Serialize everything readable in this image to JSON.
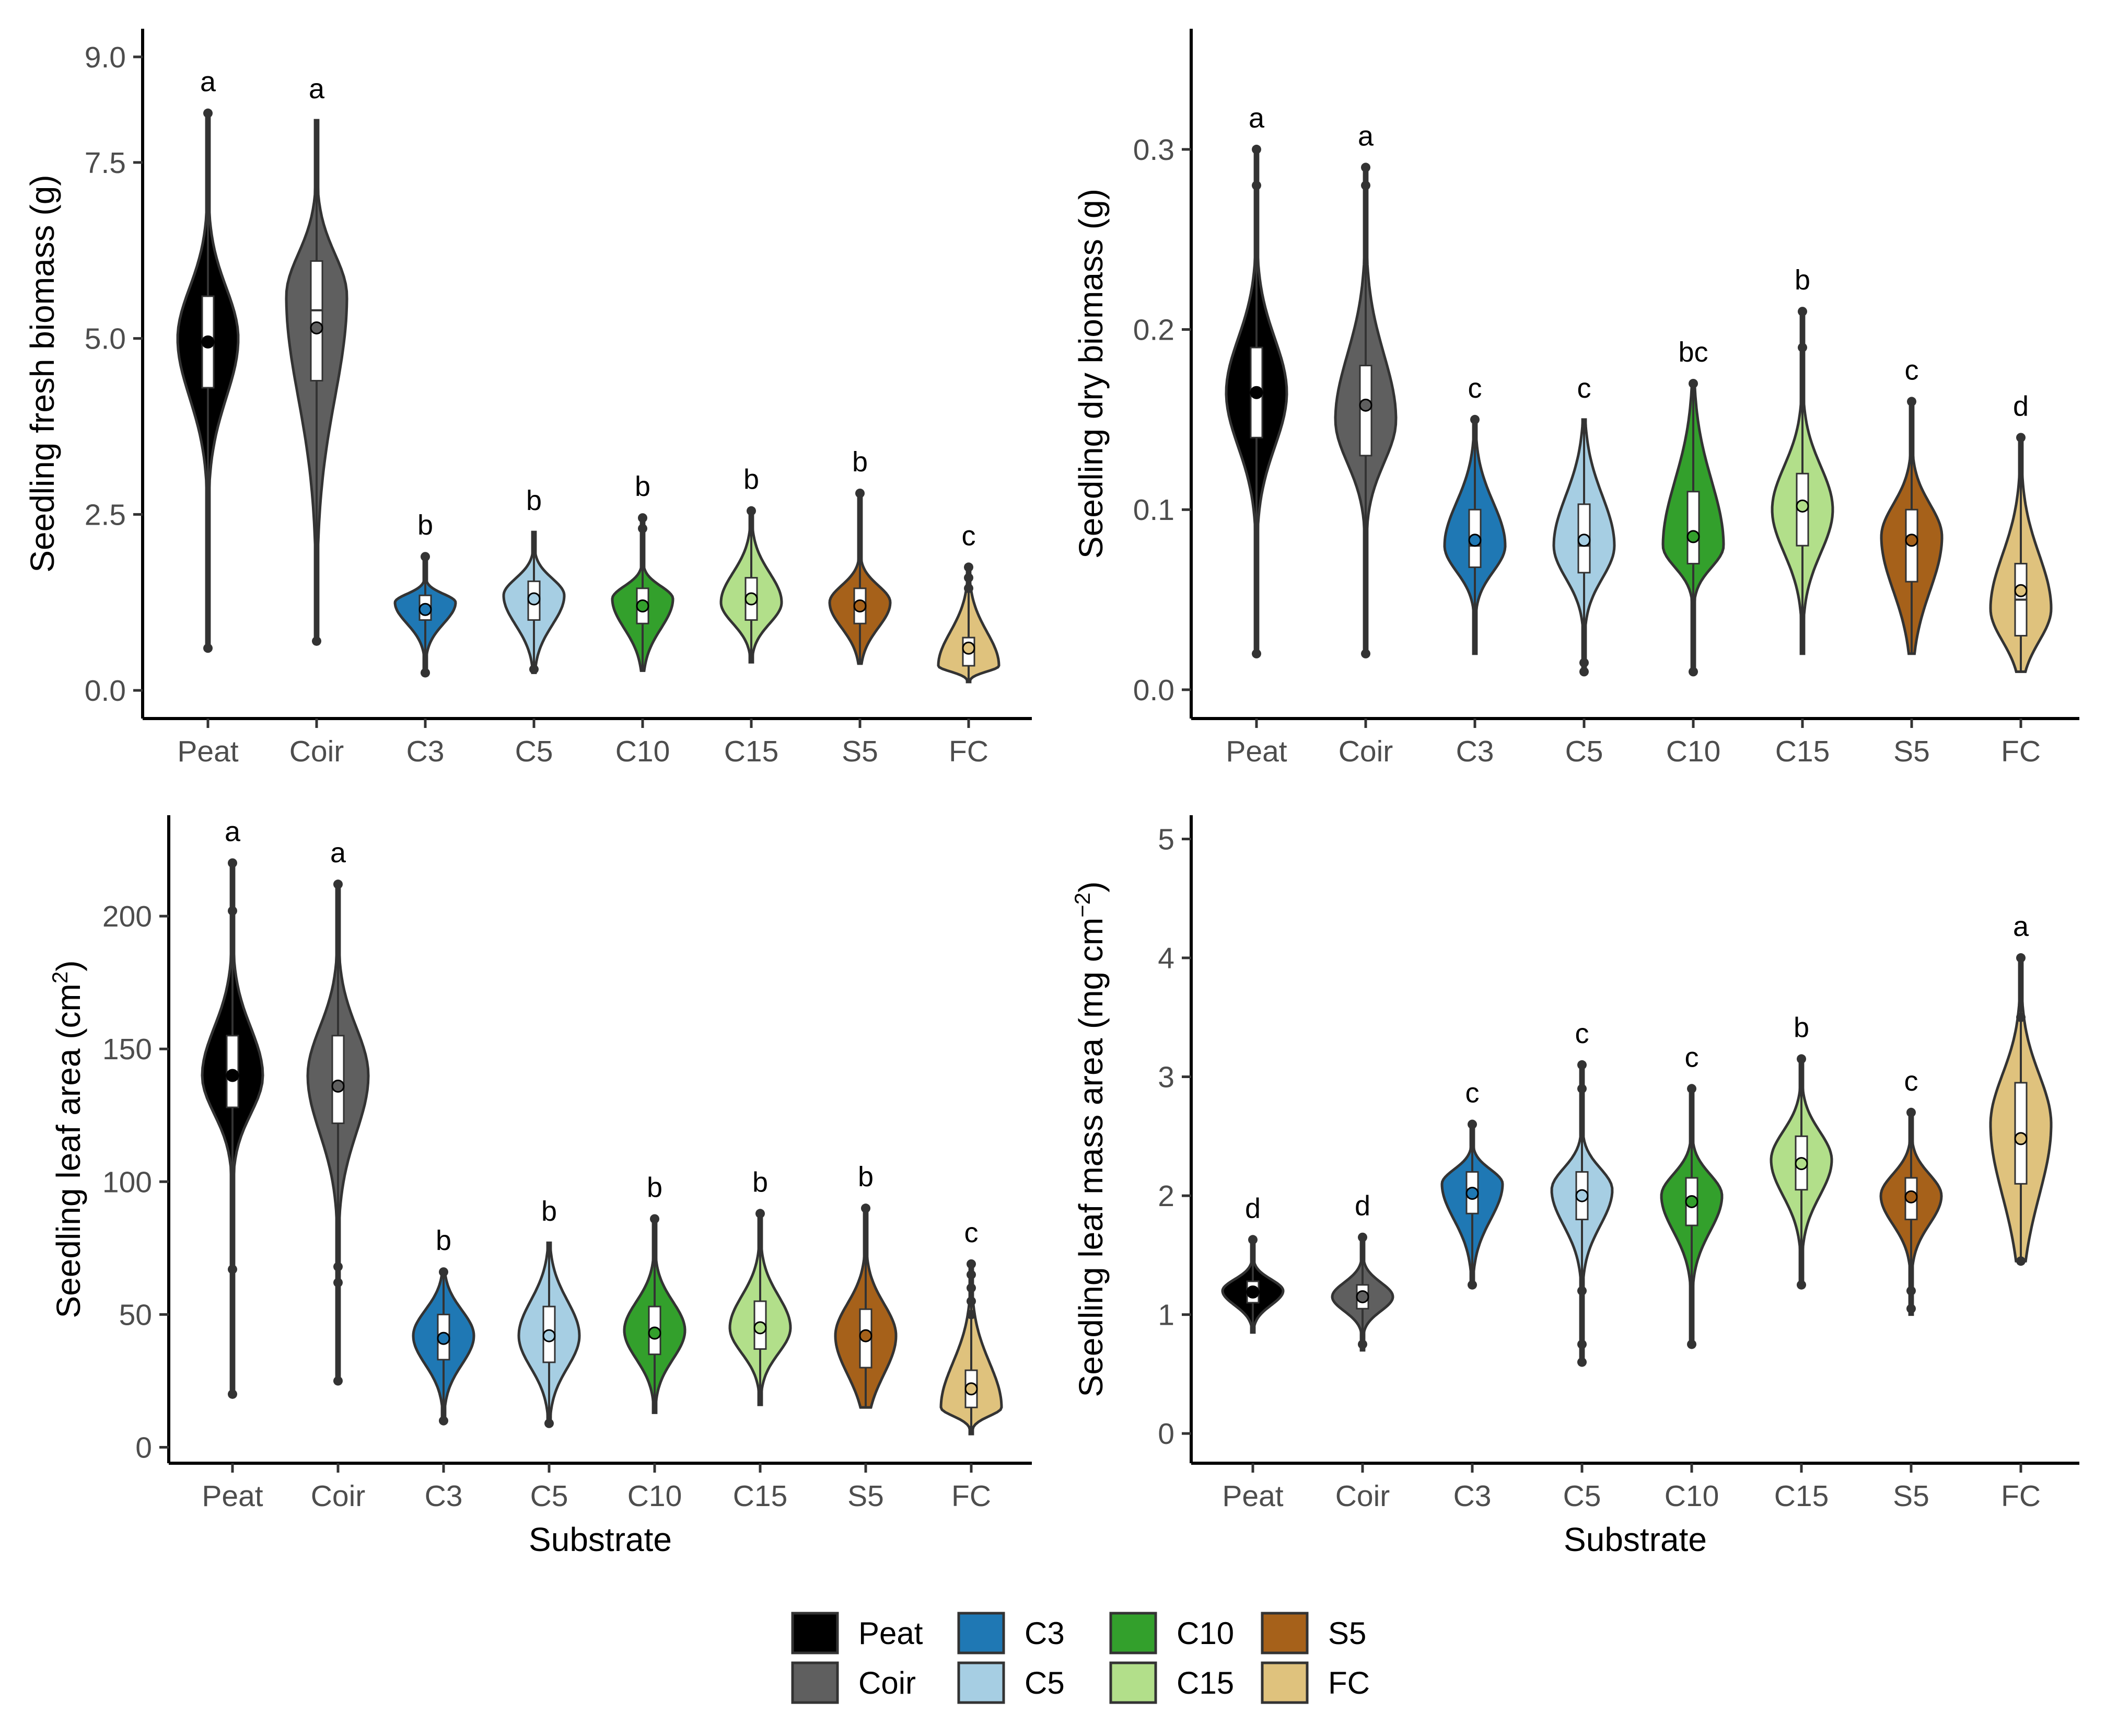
{
  "figure": {
    "categories": [
      "Peat",
      "Coir",
      "C3",
      "C5",
      "C10",
      "C15",
      "S5",
      "FC"
    ],
    "colors": {
      "Peat": "#000000",
      "Coir": "#5f5f5f",
      "C3": "#1f78b4",
      "C5": "#a6cee3",
      "C10": "#33a02c",
      "C15": "#b2df8a",
      "S5": "#a6611a",
      "FC": "#dfc27d"
    },
    "outline_color": "#333333"
  },
  "legend": {
    "items": [
      {
        "label": "Peat",
        "color": "#000000"
      },
      {
        "label": "Coir",
        "color": "#5f5f5f"
      },
      {
        "label": "C3",
        "color": "#1f78b4"
      },
      {
        "label": "C5",
        "color": "#a6cee3"
      },
      {
        "label": "C10",
        "color": "#33a02c"
      },
      {
        "label": "C15",
        "color": "#b2df8a"
      },
      {
        "label": "S5",
        "color": "#a6611a"
      },
      {
        "label": "FC",
        "color": "#dfc27d"
      }
    ]
  },
  "chart_data": [
    {
      "type": "violin",
      "id": "fresh",
      "ylabel": "Seedling fresh biomass (g)",
      "xlabel": "",
      "categories": [
        "Peat",
        "Coir",
        "C3",
        "C5",
        "C10",
        "C15",
        "S5",
        "FC"
      ],
      "ylim": [
        -0.4,
        9.4
      ],
      "yticks": [
        0.0,
        2.5,
        5.0,
        7.5,
        9.0
      ],
      "ytick_labels": [
        "0.0",
        "2.5",
        "5.0",
        "7.5",
        "9.0"
      ],
      "groups": [
        {
          "name": "Peat",
          "min": 0.6,
          "max": 8.2,
          "q1": 4.3,
          "median": 5.0,
          "q3": 5.6,
          "mean": 4.95,
          "mode": 5.0,
          "letter": "a",
          "outliers": [
            0.6,
            8.2
          ]
        },
        {
          "name": "Coir",
          "min": 0.7,
          "max": 8.1,
          "q1": 4.4,
          "median": 5.4,
          "q3": 6.1,
          "mean": 5.15,
          "mode": 5.6,
          "letter": "a",
          "outliers": [
            0.7
          ]
        },
        {
          "name": "C3",
          "min": 0.25,
          "max": 1.9,
          "q1": 1.0,
          "median": 1.15,
          "q3": 1.35,
          "mean": 1.15,
          "mode": 1.25,
          "letter": "b",
          "outliers": [
            0.25,
            1.9
          ]
        },
        {
          "name": "C5",
          "min": 0.25,
          "max": 2.25,
          "q1": 1.0,
          "median": 1.25,
          "q3": 1.55,
          "mean": 1.3,
          "mode": 1.35,
          "letter": "b",
          "outliers": [
            0.3
          ]
        },
        {
          "name": "C10",
          "min": 0.28,
          "max": 2.45,
          "q1": 0.95,
          "median": 1.2,
          "q3": 1.45,
          "mean": 1.2,
          "mode": 1.3,
          "letter": "b",
          "outliers": [
            2.3,
            2.45
          ]
        },
        {
          "name": "C15",
          "min": 0.4,
          "max": 2.55,
          "q1": 1.0,
          "median": 1.25,
          "q3": 1.6,
          "mean": 1.3,
          "mode": 1.25,
          "letter": "b",
          "outliers": [
            2.55
          ]
        },
        {
          "name": "S5",
          "min": 0.38,
          "max": 2.8,
          "q1": 0.95,
          "median": 1.2,
          "q3": 1.45,
          "mean": 1.2,
          "mode": 1.25,
          "letter": "b",
          "outliers": [
            2.8
          ]
        },
        {
          "name": "FC",
          "min": 0.12,
          "max": 1.75,
          "q1": 0.35,
          "median": 0.55,
          "q3": 0.75,
          "mean": 0.6,
          "mode": 0.35,
          "letter": "c",
          "outliers": [
            1.45,
            1.6,
            1.75
          ]
        }
      ]
    },
    {
      "type": "violin",
      "id": "dry",
      "ylabel": "Seedling dry biomass (g)",
      "xlabel": "",
      "categories": [
        "Peat",
        "Coir",
        "C3",
        "C5",
        "C10",
        "C15",
        "S5",
        "FC"
      ],
      "ylim": [
        -0.016,
        0.367
      ],
      "yticks": [
        0.0,
        0.1,
        0.2,
        0.3
      ],
      "ytick_labels": [
        "0.0",
        "0.1",
        "0.2",
        "0.3"
      ],
      "groups": [
        {
          "name": "Peat",
          "min": 0.02,
          "max": 0.3,
          "q1": 0.14,
          "median": 0.165,
          "q3": 0.19,
          "mean": 0.165,
          "mode": 0.165,
          "letter": "a",
          "outliers": [
            0.02,
            0.28,
            0.3
          ]
        },
        {
          "name": "Coir",
          "min": 0.02,
          "max": 0.29,
          "q1": 0.13,
          "median": 0.16,
          "q3": 0.18,
          "mean": 0.158,
          "mode": 0.15,
          "letter": "a",
          "outliers": [
            0.02,
            0.28,
            0.29
          ]
        },
        {
          "name": "C3",
          "min": 0.02,
          "max": 0.15,
          "q1": 0.068,
          "median": 0.08,
          "q3": 0.1,
          "mean": 0.083,
          "mode": 0.08,
          "letter": "c",
          "outliers": [
            0.15
          ]
        },
        {
          "name": "C5",
          "min": 0.01,
          "max": 0.15,
          "q1": 0.065,
          "median": 0.08,
          "q3": 0.103,
          "mean": 0.083,
          "mode": 0.08,
          "letter": "c",
          "outliers": [
            0.01,
            0.015
          ]
        },
        {
          "name": "C10",
          "min": 0.01,
          "max": 0.17,
          "q1": 0.07,
          "median": 0.085,
          "q3": 0.11,
          "mean": 0.085,
          "mode": 0.08,
          "letter": "bc",
          "outliers": [
            0.01,
            0.17
          ]
        },
        {
          "name": "C15",
          "min": 0.02,
          "max": 0.21,
          "q1": 0.08,
          "median": 0.1,
          "q3": 0.12,
          "mean": 0.102,
          "mode": 0.1,
          "letter": "b",
          "outliers": [
            0.19,
            0.21
          ]
        },
        {
          "name": "S5",
          "min": 0.02,
          "max": 0.16,
          "q1": 0.06,
          "median": 0.085,
          "q3": 0.1,
          "mean": 0.083,
          "mode": 0.085,
          "letter": "c",
          "outliers": [
            0.16
          ]
        },
        {
          "name": "FC",
          "min": 0.01,
          "max": 0.14,
          "q1": 0.03,
          "median": 0.05,
          "q3": 0.07,
          "mean": 0.055,
          "mode": 0.045,
          "letter": "d",
          "outliers": [
            0.14
          ]
        }
      ]
    },
    {
      "type": "violin",
      "id": "leafarea",
      "ylabel": "Seedling leaf area (cm",
      "ylabel_sup": "2",
      "ylabel_end": ")",
      "xlabel": "Substrate",
      "categories": [
        "Peat",
        "Coir",
        "C3",
        "C5",
        "C10",
        "C15",
        "S5",
        "FC"
      ],
      "ylim": [
        -6,
        238
      ],
      "yticks": [
        0,
        50,
        100,
        150,
        200
      ],
      "ytick_labels": [
        "0",
        "50",
        "100",
        "150",
        "200"
      ],
      "groups": [
        {
          "name": "Peat",
          "min": 20,
          "max": 220,
          "q1": 128,
          "median": 140,
          "q3": 155,
          "mean": 140,
          "mode": 140,
          "letter": "a",
          "outliers": [
            20,
            67,
            202,
            220
          ]
        },
        {
          "name": "Coir",
          "min": 25,
          "max": 212,
          "q1": 122,
          "median": 137,
          "q3": 155,
          "mean": 136,
          "mode": 140,
          "letter": "a",
          "outliers": [
            25,
            62,
            68,
            212
          ]
        },
        {
          "name": "C3",
          "min": 10,
          "max": 66,
          "q1": 33,
          "median": 42,
          "q3": 50,
          "mean": 41,
          "mode": 42,
          "letter": "b",
          "outliers": [
            10,
            66
          ]
        },
        {
          "name": "C5",
          "min": 9,
          "max": 77,
          "q1": 32,
          "median": 43,
          "q3": 53,
          "mean": 42,
          "mode": 42,
          "letter": "b",
          "outliers": [
            9
          ]
        },
        {
          "name": "C10",
          "min": 13,
          "max": 86,
          "q1": 35,
          "median": 44,
          "q3": 53,
          "mean": 43,
          "mode": 44,
          "letter": "b",
          "outliers": [
            86
          ]
        },
        {
          "name": "C15",
          "min": 16,
          "max": 88,
          "q1": 37,
          "median": 46,
          "q3": 55,
          "mean": 45,
          "mode": 45,
          "letter": "b",
          "outliers": [
            88
          ]
        },
        {
          "name": "S5",
          "min": 15,
          "max": 90,
          "q1": 30,
          "median": 42,
          "q3": 52,
          "mean": 42,
          "mode": 42,
          "letter": "b",
          "outliers": [
            90
          ]
        },
        {
          "name": "FC",
          "min": 5,
          "max": 69,
          "q1": 15,
          "median": 22,
          "q3": 29,
          "mean": 22,
          "mode": 15,
          "letter": "c",
          "outliers": [
            50,
            55,
            60,
            65,
            69
          ]
        }
      ]
    },
    {
      "type": "violin",
      "id": "lma",
      "ylabel": "Seedling leaf mass area (mg cm",
      "ylabel_sup": "−2",
      "ylabel_end": ")",
      "xlabel": "Substrate",
      "categories": [
        "Peat",
        "Coir",
        "C3",
        "C5",
        "C10",
        "C15",
        "S5",
        "FC"
      ],
      "ylim": [
        -0.25,
        5.2
      ],
      "yticks": [
        0,
        1,
        2,
        3,
        4,
        5
      ],
      "ytick_labels": [
        "0",
        "1",
        "2",
        "3",
        "4",
        "5"
      ],
      "groups": [
        {
          "name": "Peat",
          "min": 0.85,
          "max": 1.63,
          "q1": 1.1,
          "median": 1.2,
          "q3": 1.28,
          "mean": 1.19,
          "mode": 1.2,
          "letter": "d",
          "outliers": [
            1.63
          ]
        },
        {
          "name": "Coir",
          "min": 0.7,
          "max": 1.65,
          "q1": 1.05,
          "median": 1.15,
          "q3": 1.25,
          "mean": 1.15,
          "mode": 1.15,
          "letter": "d",
          "outliers": [
            0.75,
            1.65
          ]
        },
        {
          "name": "C3",
          "min": 1.25,
          "max": 2.6,
          "q1": 1.85,
          "median": 2.05,
          "q3": 2.2,
          "mean": 2.02,
          "mode": 2.1,
          "letter": "c",
          "outliers": [
            1.25,
            2.6
          ]
        },
        {
          "name": "C5",
          "min": 0.6,
          "max": 3.1,
          "q1": 1.8,
          "median": 2.0,
          "q3": 2.2,
          "mean": 2.0,
          "mode": 2.05,
          "letter": "c",
          "outliers": [
            0.6,
            0.75,
            1.2,
            2.9,
            3.1
          ]
        },
        {
          "name": "C10",
          "min": 0.75,
          "max": 2.9,
          "q1": 1.75,
          "median": 1.95,
          "q3": 2.15,
          "mean": 1.95,
          "mode": 2.0,
          "letter": "c",
          "outliers": [
            0.75,
            2.9
          ]
        },
        {
          "name": "C15",
          "min": 1.25,
          "max": 3.15,
          "q1": 2.05,
          "median": 2.25,
          "q3": 2.5,
          "mean": 2.27,
          "mode": 2.3,
          "letter": "b",
          "outliers": [
            1.25,
            3.15
          ]
        },
        {
          "name": "S5",
          "min": 1.0,
          "max": 2.7,
          "q1": 1.8,
          "median": 2.0,
          "q3": 2.15,
          "mean": 1.99,
          "mode": 2.0,
          "letter": "c",
          "outliers": [
            1.05,
            1.2,
            2.7
          ]
        },
        {
          "name": "FC",
          "min": 1.45,
          "max": 4.0,
          "q1": 2.1,
          "median": 2.5,
          "q3": 2.95,
          "mean": 2.48,
          "mode": 2.6,
          "letter": "a",
          "outliers": [
            1.45,
            3.5,
            4.0
          ]
        }
      ]
    }
  ]
}
